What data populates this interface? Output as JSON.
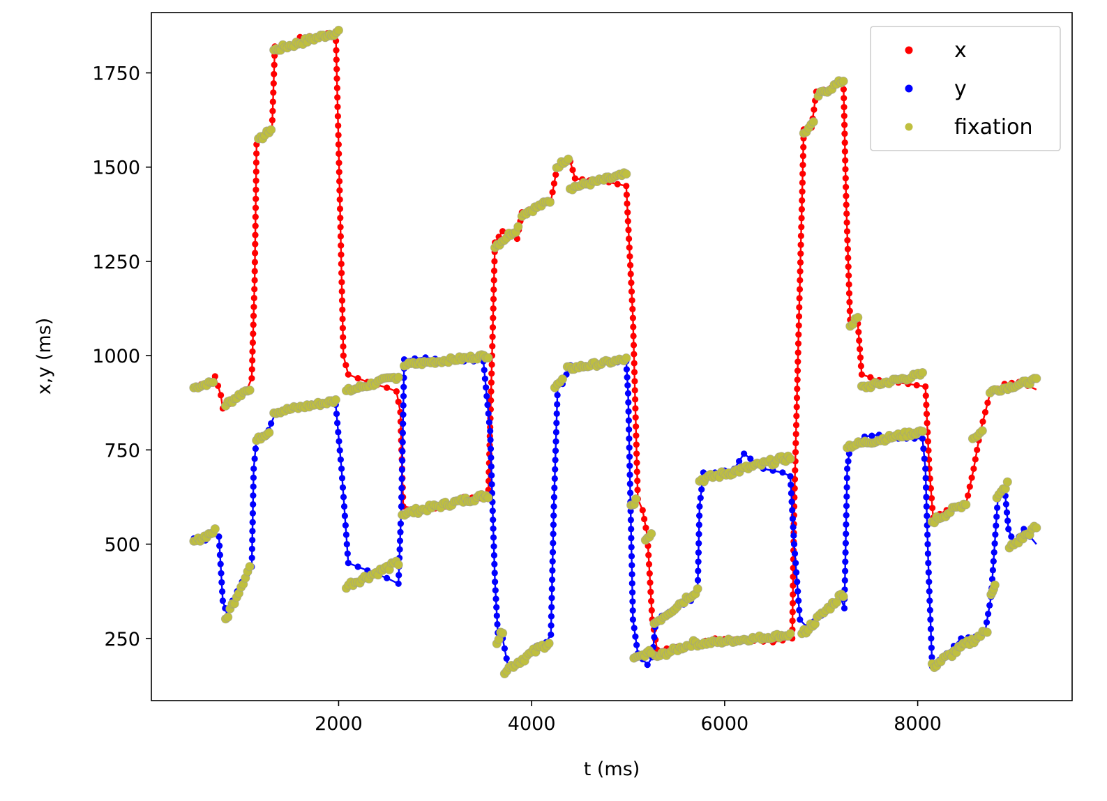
{
  "chart_data": {
    "type": "scatter",
    "title": "",
    "xlabel": "t (ms)",
    "ylabel": "x,y (ms)",
    "xlim": [
      60,
      9600
    ],
    "ylim": [
      85,
      1910
    ],
    "xticks": [
      2000,
      4000,
      6000,
      8000
    ],
    "xtick_labels": [
      "2000",
      "4000",
      "6000",
      "8000"
    ],
    "yticks": [
      250,
      500,
      750,
      1000,
      1250,
      1500,
      1750
    ],
    "ytick_labels": [
      "250",
      "500",
      "750",
      "1000",
      "1250",
      "1500",
      "1750"
    ],
    "grid": false,
    "legend_position": "top-right",
    "series": [
      {
        "name": "x",
        "color": "#ff0000",
        "style": "line+dots",
        "points": [
          [
            500,
            918
          ],
          [
            650,
            930
          ],
          [
            720,
            945
          ],
          [
            780,
            895
          ],
          [
            800,
            860
          ],
          [
            950,
            885
          ],
          [
            1050,
            910
          ],
          [
            1100,
            940
          ],
          [
            1130,
            1200
          ],
          [
            1150,
            1560
          ],
          [
            1250,
            1585
          ],
          [
            1310,
            1600
          ],
          [
            1340,
            1820
          ],
          [
            1500,
            1825
          ],
          [
            1600,
            1845
          ],
          [
            1800,
            1850
          ],
          [
            1970,
            1860
          ],
          [
            2000,
            1560
          ],
          [
            2050,
            1000
          ],
          [
            2100,
            950
          ],
          [
            2300,
            930
          ],
          [
            2500,
            915
          ],
          [
            2600,
            905
          ],
          [
            2640,
            850
          ],
          [
            2670,
            600
          ],
          [
            2900,
            590
          ],
          [
            3100,
            600
          ],
          [
            3300,
            625
          ],
          [
            3550,
            620
          ],
          [
            3590,
            1000
          ],
          [
            3620,
            1300
          ],
          [
            3700,
            1330
          ],
          [
            3850,
            1310
          ],
          [
            3900,
            1380
          ],
          [
            4050,
            1395
          ],
          [
            4200,
            1410
          ],
          [
            4250,
            1480
          ],
          [
            4300,
            1510
          ],
          [
            4400,
            1515
          ],
          [
            4450,
            1470
          ],
          [
            4600,
            1465
          ],
          [
            4800,
            1460
          ],
          [
            4980,
            1450
          ],
          [
            5050,
            1100
          ],
          [
            5100,
            620
          ],
          [
            5150,
            590
          ],
          [
            5200,
            520
          ],
          [
            5250,
            300
          ],
          [
            5300,
            220
          ],
          [
            5600,
            230
          ],
          [
            5900,
            250
          ],
          [
            6200,
            245
          ],
          [
            6500,
            240
          ],
          [
            6700,
            250
          ],
          [
            6720,
            600
          ],
          [
            6780,
            1200
          ],
          [
            6820,
            1600
          ],
          [
            6900,
            1605
          ],
          [
            6950,
            1700
          ],
          [
            7100,
            1710
          ],
          [
            7230,
            1730
          ],
          [
            7260,
            1400
          ],
          [
            7300,
            1095
          ],
          [
            7380,
            1085
          ],
          [
            7420,
            950
          ],
          [
            7600,
            935
          ],
          [
            7900,
            925
          ],
          [
            8080,
            918
          ],
          [
            8120,
            700
          ],
          [
            8160,
            570
          ],
          [
            8300,
            590
          ],
          [
            8500,
            605
          ],
          [
            8580,
            700
          ],
          [
            8650,
            800
          ],
          [
            8750,
            900
          ],
          [
            8900,
            925
          ],
          [
            9050,
            930
          ],
          [
            9230,
            910
          ]
        ]
      },
      {
        "name": "y",
        "color": "#0000ff",
        "style": "line+dots",
        "points": [
          [
            500,
            515
          ],
          [
            620,
            510
          ],
          [
            700,
            535
          ],
          [
            760,
            520
          ],
          [
            800,
            350
          ],
          [
            850,
            310
          ],
          [
            900,
            350
          ],
          [
            1000,
            400
          ],
          [
            1100,
            440
          ],
          [
            1120,
            700
          ],
          [
            1150,
            780
          ],
          [
            1250,
            785
          ],
          [
            1300,
            820
          ],
          [
            1350,
            850
          ],
          [
            1500,
            860
          ],
          [
            1700,
            870
          ],
          [
            1970,
            870
          ],
          [
            2030,
            700
          ],
          [
            2100,
            450
          ],
          [
            2300,
            430
          ],
          [
            2500,
            410
          ],
          [
            2620,
            395
          ],
          [
            2650,
            600
          ],
          [
            2680,
            990
          ],
          [
            2900,
            995
          ],
          [
            3200,
            985
          ],
          [
            3500,
            985
          ],
          [
            3570,
            800
          ],
          [
            3620,
            400
          ],
          [
            3650,
            265
          ],
          [
            3700,
            250
          ],
          [
            3760,
            170
          ],
          [
            3900,
            190
          ],
          [
            4050,
            230
          ],
          [
            4150,
            240
          ],
          [
            4200,
            260
          ],
          [
            4230,
            600
          ],
          [
            4270,
            920
          ],
          [
            4320,
            925
          ],
          [
            4400,
            975
          ],
          [
            4600,
            975
          ],
          [
            4800,
            980
          ],
          [
            4980,
            985
          ],
          [
            5000,
            900
          ],
          [
            5050,
            300
          ],
          [
            5100,
            210
          ],
          [
            5200,
            180
          ],
          [
            5250,
            200
          ],
          [
            5280,
            280
          ],
          [
            5350,
            310
          ],
          [
            5500,
            330
          ],
          [
            5650,
            350
          ],
          [
            5720,
            380
          ],
          [
            5740,
            600
          ],
          [
            5780,
            690
          ],
          [
            5900,
            690
          ],
          [
            6100,
            700
          ],
          [
            6200,
            740
          ],
          [
            6400,
            700
          ],
          [
            6600,
            690
          ],
          [
            6680,
            680
          ],
          [
            6720,
            500
          ],
          [
            6780,
            300
          ],
          [
            6850,
            280
          ],
          [
            7000,
            310
          ],
          [
            7100,
            340
          ],
          [
            7200,
            360
          ],
          [
            7240,
            330
          ],
          [
            7270,
            700
          ],
          [
            7300,
            760
          ],
          [
            7450,
            785
          ],
          [
            7600,
            790
          ],
          [
            7800,
            780
          ],
          [
            8050,
            780
          ],
          [
            8080,
            700
          ],
          [
            8110,
            450
          ],
          [
            8150,
            175
          ],
          [
            8300,
            210
          ],
          [
            8450,
            250
          ],
          [
            8600,
            255
          ],
          [
            8700,
            270
          ],
          [
            8760,
            360
          ],
          [
            8830,
            620
          ],
          [
            8900,
            650
          ],
          [
            8940,
            540
          ],
          [
            9000,
            500
          ],
          [
            9100,
            540
          ],
          [
            9230,
            500
          ]
        ]
      },
      {
        "name": "fixation",
        "color": "#bfbf3f",
        "style": "dots",
        "segments": [
          [
            500,
            700,
            915,
            930
          ],
          [
            830,
            1080,
            870,
            915
          ],
          [
            1170,
            1300,
            1570,
            1600
          ],
          [
            1330,
            2000,
            1810,
            1860
          ],
          [
            2080,
            2620,
            905,
            945
          ],
          [
            2660,
            3550,
            580,
            630
          ],
          [
            3620,
            3860,
            1290,
            1340
          ],
          [
            3900,
            4190,
            1375,
            1410
          ],
          [
            4260,
            4380,
            1500,
            1525
          ],
          [
            4400,
            4980,
            1445,
            1480
          ],
          [
            5030,
            5080,
            600,
            615
          ],
          [
            5180,
            5240,
            510,
            525
          ],
          [
            5280,
            5700,
            200,
            240
          ],
          [
            5720,
            6680,
            235,
            260
          ],
          [
            6820,
            6920,
            1590,
            1615
          ],
          [
            6970,
            7230,
            1690,
            1730
          ],
          [
            7300,
            7380,
            1080,
            1100
          ],
          [
            7420,
            8050,
            915,
            950
          ],
          [
            8150,
            8500,
            560,
            610
          ],
          [
            8570,
            8670,
            780,
            800
          ],
          [
            8750,
            9230,
            905,
            935
          ],
          [
            500,
            720,
            505,
            535
          ],
          [
            830,
            1080,
            300,
            440
          ],
          [
            1150,
            1280,
            775,
            800
          ],
          [
            1330,
            1970,
            850,
            880
          ],
          [
            2080,
            2620,
            390,
            450
          ],
          [
            2680,
            3550,
            975,
            1000
          ],
          [
            3640,
            3700,
            240,
            270
          ],
          [
            3720,
            4180,
            165,
            240
          ],
          [
            4240,
            4320,
            915,
            935
          ],
          [
            4370,
            4980,
            965,
            990
          ],
          [
            5060,
            5240,
            195,
            215
          ],
          [
            5270,
            5720,
            290,
            380
          ],
          [
            5740,
            6680,
            670,
            730
          ],
          [
            6800,
            7230,
            260,
            370
          ],
          [
            7270,
            8050,
            760,
            800
          ],
          [
            8150,
            8720,
            175,
            270
          ],
          [
            8760,
            8800,
            370,
            390
          ],
          [
            8820,
            8930,
            620,
            660
          ],
          [
            8950,
            9230,
            490,
            545
          ]
        ]
      }
    ]
  }
}
